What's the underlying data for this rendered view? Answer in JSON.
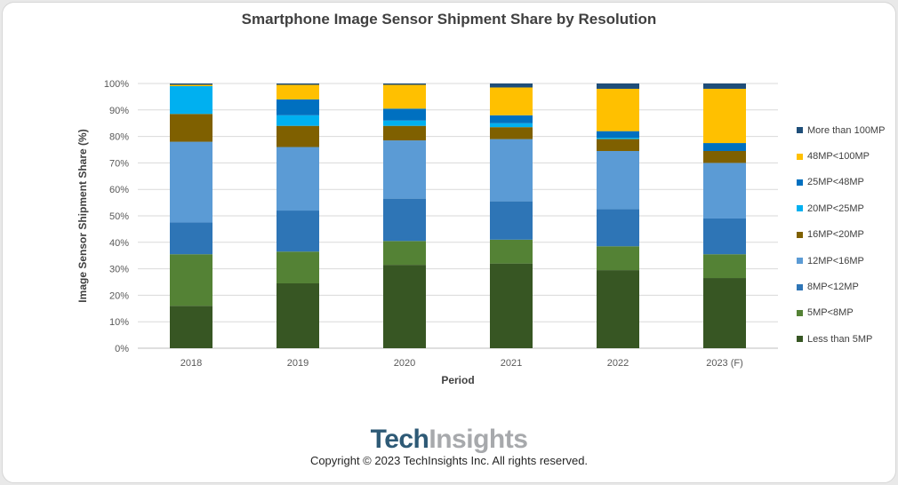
{
  "chart_data": {
    "type": "stacked_bar",
    "title": "Smartphone Image Sensor Shipment Share by Resolution",
    "xlabel": "Period",
    "ylabel": "Image Sensor Shipment Share (%)",
    "ylim": [
      0,
      100
    ],
    "yticks": [
      "0%",
      "10%",
      "20%",
      "30%",
      "40%",
      "50%",
      "60%",
      "70%",
      "80%",
      "90%",
      "100%"
    ],
    "categories": [
      "2018",
      "2019",
      "2020",
      "2021",
      "2022",
      "2023 (F)"
    ],
    "series": [
      {
        "name": "Less than 5MP",
        "color": "#375623",
        "values": [
          16,
          24.5,
          31.5,
          32,
          29.5,
          26.5
        ]
      },
      {
        "name": "5MP<8MP",
        "color": "#548235",
        "values": [
          19.5,
          12,
          9,
          9,
          9,
          9
        ]
      },
      {
        "name": "8MP<12MP",
        "color": "#2e75b6",
        "values": [
          12,
          15.5,
          16,
          14.5,
          14,
          13.5
        ]
      },
      {
        "name": "12MP<16MP",
        "color": "#5b9bd5",
        "values": [
          30.5,
          24,
          22,
          23.5,
          22,
          21
        ]
      },
      {
        "name": "16MP<20MP",
        "color": "#7f6000",
        "values": [
          10.5,
          8,
          5.5,
          4.5,
          4.5,
          4.5
        ]
      },
      {
        "name": "20MP<25MP",
        "color": "#00b0f0",
        "values": [
          10.5,
          4,
          2,
          1.5,
          0.5,
          0
        ]
      },
      {
        "name": "25MP<48MP",
        "color": "#0070c0",
        "values": [
          0,
          6,
          4.5,
          3,
          2.5,
          3
        ]
      },
      {
        "name": "48MP<100MP",
        "color": "#ffc000",
        "values": [
          0.5,
          5.5,
          9,
          10.5,
          16,
          20.5
        ]
      },
      {
        "name": "More than 100MP",
        "color": "#1f4e79",
        "values": [
          0.5,
          0.5,
          0.5,
          1.5,
          2,
          2
        ]
      }
    ],
    "legend_position": "right",
    "grid": true
  },
  "branding": {
    "part1": "Tech",
    "part2": "Insights"
  },
  "copyright": "Copyright © 2023 TechInsights Inc.  All rights reserved."
}
